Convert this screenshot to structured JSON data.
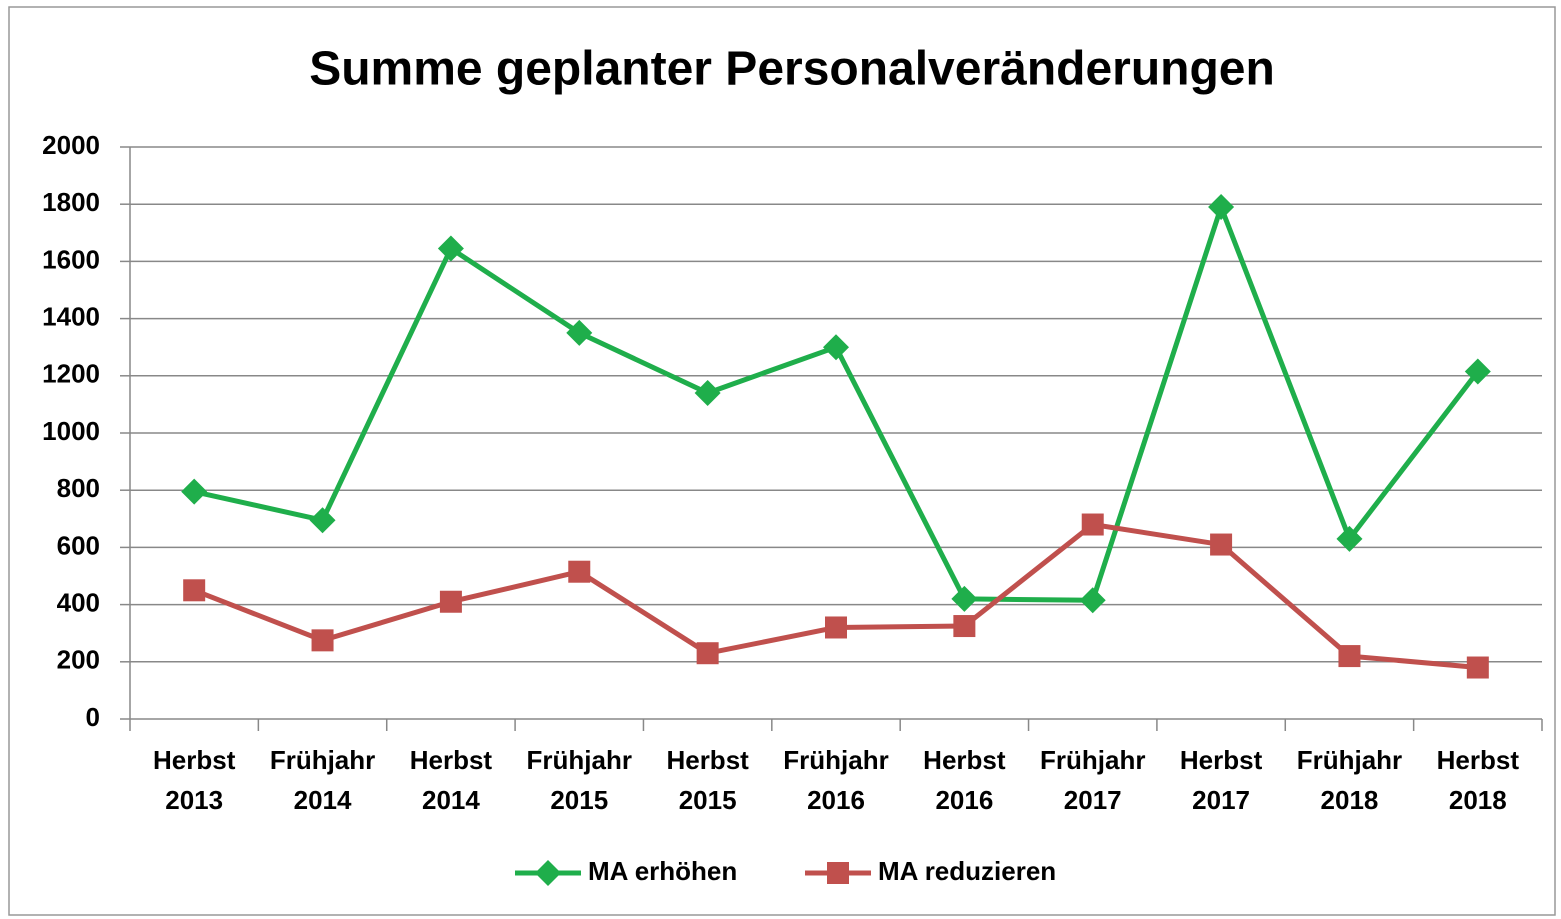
{
  "chart_data": {
    "type": "line",
    "title": "Summe geplanter Personalveränderungen",
    "categories": [
      "Herbst 2013",
      "Frühjahr 2014",
      "Herbst 2014",
      "Frühjahr 2015",
      "Herbst 2015",
      "Frühjahr 2016",
      "Herbst 2016",
      "Frühjahr 2017",
      "Herbst 2017",
      "Frühjahr 2018",
      "Herbst 2018"
    ],
    "series": [
      {
        "name": "MA erhöhen",
        "color": "#1fae4b",
        "marker": "diamond",
        "values": [
          795,
          695,
          1645,
          1350,
          1140,
          1300,
          420,
          415,
          1790,
          630,
          1215
        ]
      },
      {
        "name": "MA reduzieren",
        "color": "#c0504d",
        "marker": "square",
        "values": [
          450,
          275,
          410,
          515,
          230,
          320,
          325,
          680,
          610,
          220,
          180
        ]
      }
    ],
    "ylim": [
      0,
      2000
    ],
    "yticks": [
      0,
      200,
      400,
      600,
      800,
      1000,
      1200,
      1400,
      1600,
      1800,
      2000
    ],
    "grid": true,
    "legend": "bottom"
  }
}
